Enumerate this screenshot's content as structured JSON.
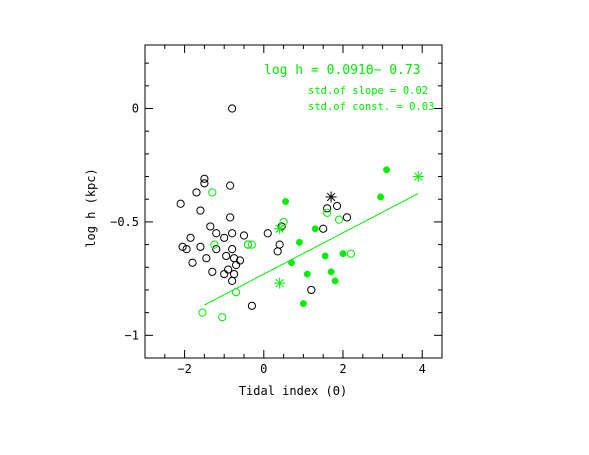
{
  "chart_data": {
    "type": "scatter",
    "title": "",
    "xlabel": "Tidal index (Θ)",
    "ylabel": "log h (kpc)",
    "xlim": [
      -3.0,
      4.5
    ],
    "ylim": [
      -1.1,
      0.28
    ],
    "x_ticks": [
      -2,
      0,
      2,
      4
    ],
    "x_tick_labels": [
      "−2",
      "0",
      "2",
      "4"
    ],
    "y_ticks": [
      0,
      -0.5,
      -1
    ],
    "y_tick_labels": [
      "0",
      "−0.5",
      "−1"
    ],
    "grid": false,
    "colors": {
      "black": "#000000",
      "green": "#00ee00"
    },
    "annotation": {
      "equation": "log h = 0.091Θ− 0.73",
      "std_slope": "std.of slope = 0.02",
      "std_const": "std.of const. = 0.03",
      "color": "#00ee00"
    },
    "fit_line": {
      "slope": 0.091,
      "intercept": -0.73,
      "x_range": [
        -1.5,
        3.9
      ],
      "color": "#00ee00"
    },
    "series": [
      {
        "marker": "open-circle",
        "color": "#000000",
        "points": [
          [
            -0.8,
            0.0
          ],
          [
            -2.1,
            -0.42
          ],
          [
            -2.05,
            -0.61
          ],
          [
            -1.95,
            -0.62
          ],
          [
            -1.85,
            -0.57
          ],
          [
            -1.8,
            -0.68
          ],
          [
            -1.7,
            -0.37
          ],
          [
            -1.6,
            -0.45
          ],
          [
            -1.6,
            -0.61
          ],
          [
            -1.5,
            -0.31
          ],
          [
            -1.5,
            -0.33
          ],
          [
            -1.45,
            -0.66
          ],
          [
            -1.35,
            -0.52
          ],
          [
            -1.3,
            -0.72
          ],
          [
            -1.2,
            -0.55
          ],
          [
            -1.2,
            -0.62
          ],
          [
            -1.0,
            -0.57
          ],
          [
            -0.95,
            -0.65
          ],
          [
            -0.85,
            -0.34
          ],
          [
            -0.85,
            -0.48
          ],
          [
            -0.8,
            -0.55
          ],
          [
            -0.8,
            -0.62
          ],
          [
            -0.75,
            -0.66
          ],
          [
            -0.75,
            -0.73
          ],
          [
            -0.7,
            -0.69
          ],
          [
            -0.6,
            -0.67
          ],
          [
            -0.5,
            -0.56
          ],
          [
            -0.4,
            -0.6
          ],
          [
            -0.8,
            -0.76
          ],
          [
            -0.9,
            -0.71
          ],
          [
            -1.0,
            -0.73
          ],
          [
            -0.3,
            -0.87
          ],
          [
            0.1,
            -0.55
          ],
          [
            0.4,
            -0.6
          ],
          [
            0.45,
            -0.52
          ],
          [
            0.35,
            -0.63
          ],
          [
            1.2,
            -0.8
          ],
          [
            1.5,
            -0.53
          ],
          [
            1.6,
            -0.44
          ],
          [
            1.85,
            -0.43
          ],
          [
            2.1,
            -0.48
          ]
        ]
      },
      {
        "marker": "open-circle",
        "color": "#00ee00",
        "points": [
          [
            -1.3,
            -0.37
          ],
          [
            -1.25,
            -0.6
          ],
          [
            -1.55,
            -0.9
          ],
          [
            -1.05,
            -0.92
          ],
          [
            -0.7,
            -0.81
          ],
          [
            -0.4,
            -0.6
          ],
          [
            -0.3,
            -0.6
          ],
          [
            0.5,
            -0.5
          ],
          [
            1.6,
            -0.46
          ],
          [
            1.9,
            -0.49
          ],
          [
            2.2,
            -0.64
          ]
        ]
      },
      {
        "marker": "filled-circle",
        "color": "#00ee00",
        "points": [
          [
            0.55,
            -0.41
          ],
          [
            0.7,
            -0.68
          ],
          [
            0.9,
            -0.59
          ],
          [
            1.0,
            -0.86
          ],
          [
            1.1,
            -0.73
          ],
          [
            1.3,
            -0.53
          ],
          [
            1.55,
            -0.65
          ],
          [
            1.7,
            -0.72
          ],
          [
            1.8,
            -0.76
          ],
          [
            2.0,
            -0.64
          ],
          [
            2.95,
            -0.39
          ],
          [
            3.1,
            -0.27
          ]
        ]
      },
      {
        "marker": "star",
        "color": "#00ee00",
        "points": [
          [
            0.4,
            -0.53
          ],
          [
            0.4,
            -0.77
          ],
          [
            3.9,
            -0.3
          ]
        ]
      },
      {
        "marker": "star",
        "color": "#000000",
        "points": [
          [
            1.7,
            -0.39
          ]
        ]
      }
    ]
  }
}
